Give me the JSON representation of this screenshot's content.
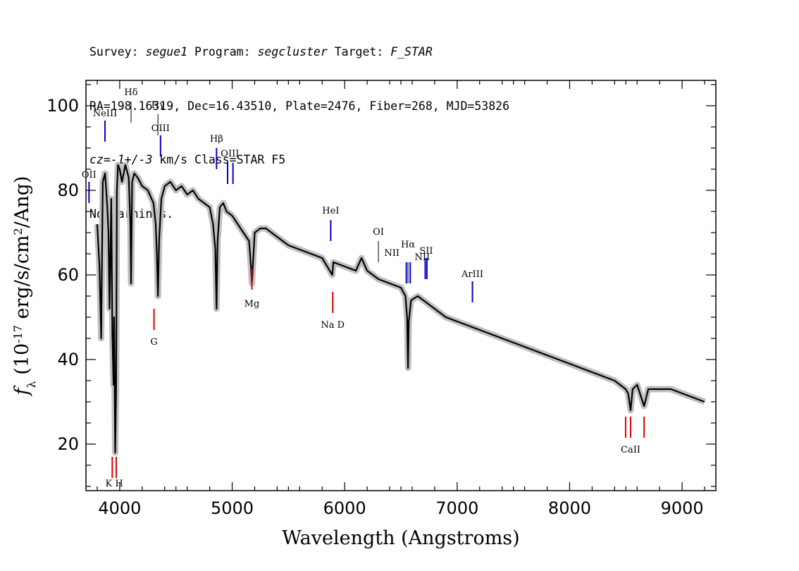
{
  "header": {
    "line1": {
      "survey_label": "Survey: ",
      "survey": "segue1",
      "program_label": " Program: ",
      "program": "segcluster",
      "target_label": " Target: ",
      "target": "F_STAR"
    },
    "line2": "RA=198.16319, Dec=16.43510, Plate=2476, Fiber=268, MJD=53826",
    "line3": {
      "cz": "cz=-1+/-3",
      "rest": " km/s Class=STAR F5"
    },
    "line4": "No warnings."
  },
  "chart_data": {
    "type": "line",
    "xlabel": "Wavelength (Angstroms)",
    "ylabel": "f_λ (10^-17 erg/s/cm^2/Ang)",
    "xlim": [
      3700,
      9300
    ],
    "ylim": [
      9,
      106
    ],
    "x_ticks": [
      4000,
      5000,
      6000,
      7000,
      8000,
      9000
    ],
    "y_ticks": [
      20,
      40,
      60,
      80,
      100
    ],
    "grid": false,
    "colors": {
      "flux": "#000000",
      "error_band": "#c0c0c0",
      "emission": "#0000cc",
      "absorption": "#dd0000",
      "balmer": "#000000"
    },
    "series": [
      {
        "name": "flux",
        "x": [
          3800,
          3820,
          3835,
          3850,
          3870,
          3890,
          3900,
          3910,
          3925,
          3935,
          3945,
          3950,
          3960,
          3968,
          3975,
          3985,
          4000,
          4020,
          4050,
          4080,
          4095,
          4101,
          4110,
          4130,
          4160,
          4200,
          4250,
          4300,
          4320,
          4330,
          4340,
          4350,
          4370,
          4400,
          4450,
          4500,
          4550,
          4600,
          4650,
          4700,
          4750,
          4800,
          4830,
          4850,
          4861,
          4870,
          4890,
          4920,
          4950,
          5000,
          5050,
          5100,
          5150,
          5167,
          5175,
          5183,
          5200,
          5250,
          5300,
          5400,
          5500,
          5600,
          5700,
          5800,
          5890,
          5900,
          6000,
          6100,
          6150,
          6200,
          6300,
          6400,
          6500,
          6540,
          6555,
          6563,
          6570,
          6590,
          6650,
          6700,
          6800,
          6900,
          7000,
          7100,
          7200,
          7300,
          7400,
          7500,
          7600,
          7700,
          7800,
          7900,
          8000,
          8100,
          8200,
          8300,
          8400,
          8498,
          8520,
          8542,
          8560,
          8600,
          8662,
          8700,
          8800,
          8900,
          9000,
          9100,
          9200
        ],
        "y": [
          72,
          62,
          45,
          82,
          84,
          76,
          70,
          52,
          78,
          46,
          34,
          50,
          18,
          33,
          80,
          86,
          85,
          82,
          86,
          83,
          72,
          58,
          82,
          84,
          83,
          81,
          80,
          77,
          72,
          65,
          55,
          68,
          78,
          81,
          82,
          80,
          81,
          79,
          80,
          78,
          77,
          76,
          72,
          66,
          52,
          68,
          76,
          77,
          75,
          74,
          72,
          70,
          68,
          62,
          58,
          62,
          70,
          71,
          71,
          69,
          67,
          66,
          65,
          64,
          60,
          63,
          62,
          61,
          64,
          61,
          59,
          58,
          57,
          55,
          50,
          38,
          49,
          54,
          55,
          54,
          52,
          50,
          49,
          48,
          47,
          46,
          45,
          44,
          43,
          42,
          41,
          40,
          39,
          38,
          37,
          36,
          35,
          33,
          32,
          28,
          33,
          34,
          29,
          33,
          33,
          33,
          32,
          31,
          30
        ]
      }
    ],
    "line_markers": [
      {
        "label": "OII",
        "x": 3727,
        "y0": 77,
        "y1": 82,
        "kind": "emission",
        "label_y": 83
      },
      {
        "label": "NeIII",
        "x": 3869,
        "y0": 91.5,
        "y1": 96.5,
        "kind": "emission",
        "label_y": 97.5
      },
      {
        "label": "Hδ",
        "x": 4101,
        "y0": 96,
        "y1": 101,
        "kind": "balmer",
        "label_y": 102.5
      },
      {
        "label": "Hγ",
        "x": 4340,
        "y0": 93,
        "y1": 98,
        "kind": "balmer",
        "label_y": 99.5
      },
      {
        "label": "OIII",
        "x": 4363,
        "y0": 88,
        "y1": 93,
        "kind": "emission",
        "label_y": 94
      },
      {
        "label": "Hβ",
        "x": 4861,
        "y0": 85,
        "y1": 90,
        "kind": "emission",
        "label_y": 91.5
      },
      {
        "label": "OIII",
        "x": 4980,
        "y0": 81.5,
        "y1": 86.5,
        "kind": "emission",
        "label_y": 88,
        "marks": [
          4959,
          5007
        ]
      },
      {
        "label": "HeI",
        "x": 5876,
        "y0": 68,
        "y1": 73,
        "kind": "emission",
        "label_y": 74.5
      },
      {
        "label": "OI",
        "x": 6300,
        "y0": 63,
        "y1": 68,
        "kind": "balmer",
        "label_y": 69.5
      },
      {
        "label": "NII",
        "x": 6420,
        "y0": 58,
        "y1": 63,
        "kind": "emission",
        "label_y": 64.5,
        "marks": [
          6548
        ]
      },
      {
        "label": "Hα",
        "x": 6563,
        "y0": 58,
        "y1": 63,
        "kind": "balmer",
        "label_y": 66.5
      },
      {
        "label": "NII",
        "x": 6690,
        "y0": 58,
        "y1": 63,
        "kind": "emission",
        "label_y": 63.5,
        "marks": [
          6583
        ]
      },
      {
        "label": "SII",
        "x": 6725,
        "y0": 59,
        "y1": 64,
        "kind": "emission",
        "label_y": 65,
        "marks": [
          6716,
          6731
        ]
      },
      {
        "label": "ArIII",
        "x": 7136,
        "y0": 53.5,
        "y1": 58.5,
        "kind": "emission",
        "label_y": 59.5
      },
      {
        "label": "K H",
        "x": 3951,
        "y0": 12,
        "y1": 17,
        "kind": "absorption",
        "label_y": 10,
        "marks": [
          3934,
          3969
        ]
      },
      {
        "label": "G",
        "x": 4305,
        "y0": 47,
        "y1": 52,
        "kind": "absorption",
        "label_y": 43.5
      },
      {
        "label": "Mg",
        "x": 5175,
        "y0": 56.5,
        "y1": 61.5,
        "kind": "absorption",
        "label_y": 52.5
      },
      {
        "label": "Na D",
        "x": 5894,
        "y0": 51,
        "y1": 56,
        "kind": "absorption",
        "label_y": 47.5
      },
      {
        "label": "CaII",
        "x": 8542,
        "y0": 21.5,
        "y1": 26.5,
        "kind": "absorption",
        "label_y": 18,
        "marks": [
          8498,
          8542,
          8662
        ]
      }
    ]
  }
}
